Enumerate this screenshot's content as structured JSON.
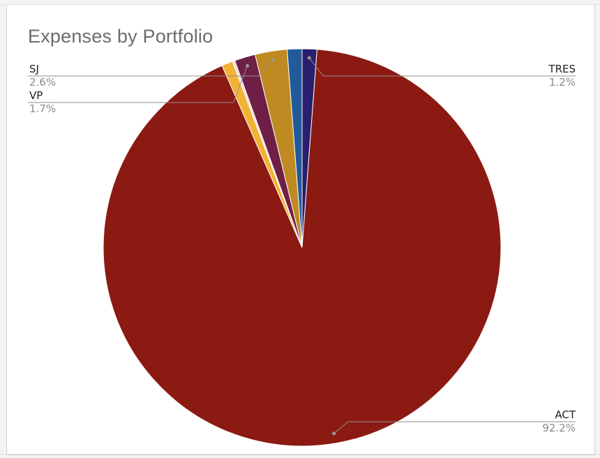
{
  "chart_data": {
    "type": "pie",
    "title": "Expenses by Portfolio",
    "slices": [
      {
        "name": "TRES",
        "value": 1.2,
        "label": "1.2%",
        "color": "#2a1e6e"
      },
      {
        "name": "ACT",
        "value": 92.2,
        "label": "92.2%",
        "color": "#8b1a12"
      },
      {
        "name": "",
        "value": 0.9,
        "label": "",
        "color": "#f2b233"
      },
      {
        "name": "",
        "value": 0.2,
        "label": "",
        "color": "#f4d7e0"
      },
      {
        "name": "VP",
        "value": 1.7,
        "label": "1.7%",
        "color": "#6e1f46"
      },
      {
        "name": "SJ",
        "value": 2.6,
        "label": "2.6%",
        "color": "#c08a22"
      },
      {
        "name": "",
        "value": 1.2,
        "label": "",
        "color": "#235a9a"
      }
    ],
    "legend": "none"
  }
}
